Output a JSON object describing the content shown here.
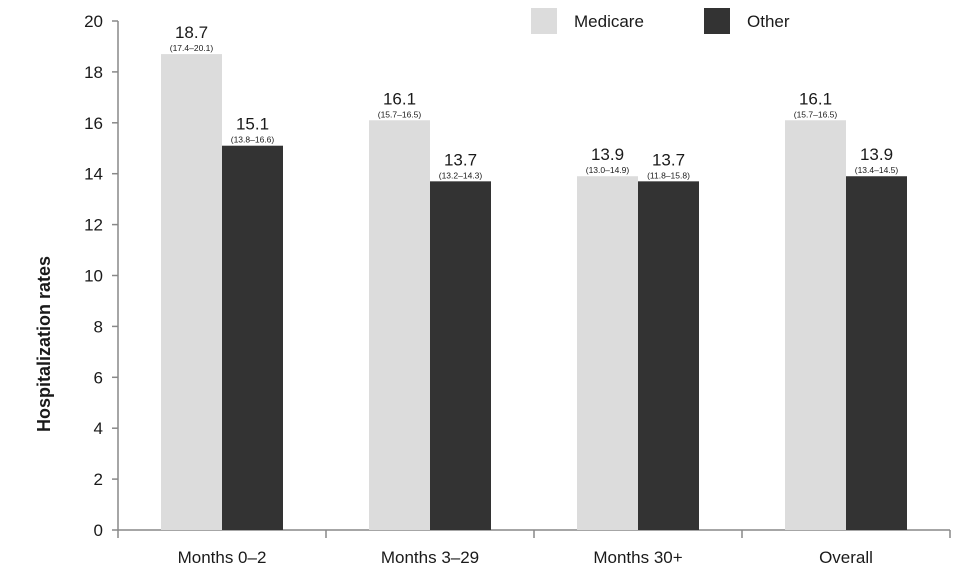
{
  "chart_data": {
    "type": "bar",
    "title": "",
    "xlabel": "",
    "ylabel": "Hospitalization rates",
    "ylim": [
      0,
      20
    ],
    "yticks": [
      "0",
      "2",
      "4",
      "6",
      "8",
      "10",
      "12",
      "14",
      "16",
      "18",
      "20"
    ],
    "grid": false,
    "legend_position": "top-right",
    "categories": [
      "Months 0–2",
      "Months 3–29",
      "Months 30+",
      "Overall"
    ],
    "series": [
      {
        "name": "Medicare",
        "color": "#dcdcdc",
        "values": [
          18.7,
          16.1,
          13.9,
          16.1
        ],
        "value_labels": [
          "18.7",
          "16.1",
          "13.9",
          "16.1"
        ],
        "ci_labels": [
          "(17.4–20.1)",
          "(15.7–16.5)",
          "(13.0–14.9)",
          "(15.7–16.5)"
        ]
      },
      {
        "name": "Other",
        "color": "#333333",
        "values": [
          15.1,
          13.7,
          13.7,
          13.9
        ],
        "value_labels": [
          "15.1",
          "13.7",
          "13.7",
          "13.9"
        ],
        "ci_labels": [
          "(13.8–16.6)",
          "(13.2–14.3)",
          "(11.8–15.8)",
          "(13.4–14.5)"
        ]
      }
    ]
  }
}
